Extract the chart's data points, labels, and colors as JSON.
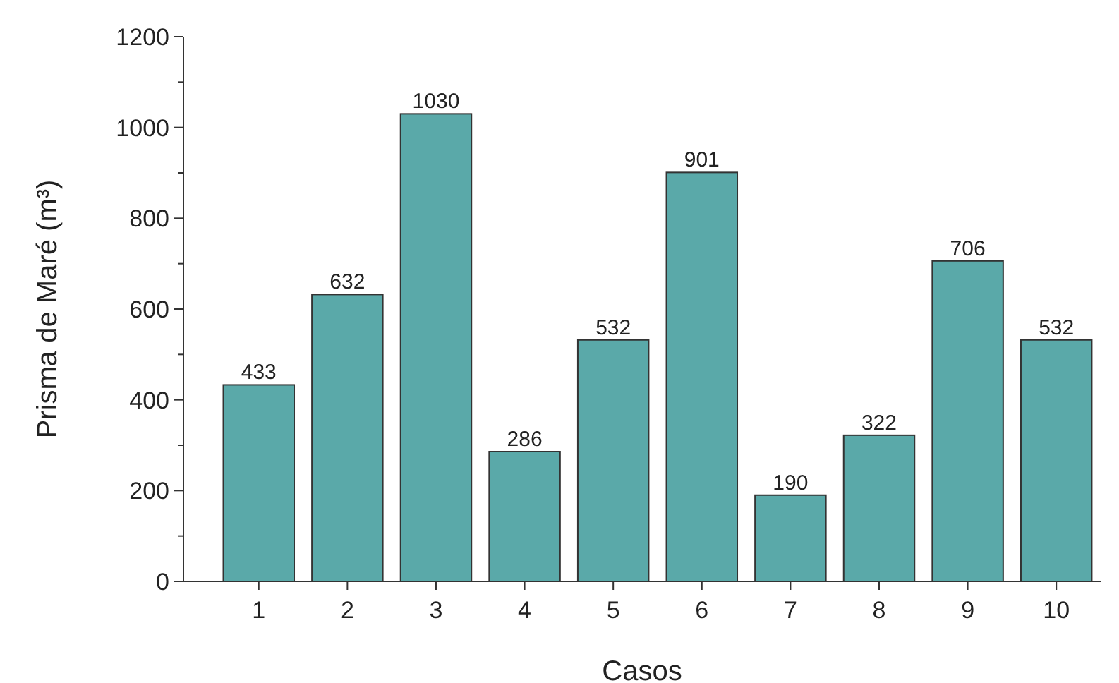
{
  "chart_data": {
    "type": "bar",
    "xlabel": "Casos",
    "ylabel": "Prisma de Maré (m³)",
    "categories": [
      "1",
      "2",
      "3",
      "4",
      "5",
      "6",
      "7",
      "8",
      "9",
      "10"
    ],
    "values": [
      433,
      632,
      1030,
      286,
      532,
      901,
      190,
      322,
      706,
      532
    ],
    "color": "#5aa9a9",
    "data_labels": true,
    "grid": false,
    "ylim": [
      0,
      1200
    ],
    "yticks": [
      0,
      {
        "value": 100,
        "label": null
      },
      200,
      {
        "value": 300,
        "label": null
      },
      400,
      {
        "value": 500,
        "label": null
      },
      600,
      {
        "value": 700,
        "label": null
      },
      800,
      {
        "value": 900,
        "label": null
      },
      1000,
      {
        "value": 1100,
        "label": null
      },
      1200
    ]
  }
}
